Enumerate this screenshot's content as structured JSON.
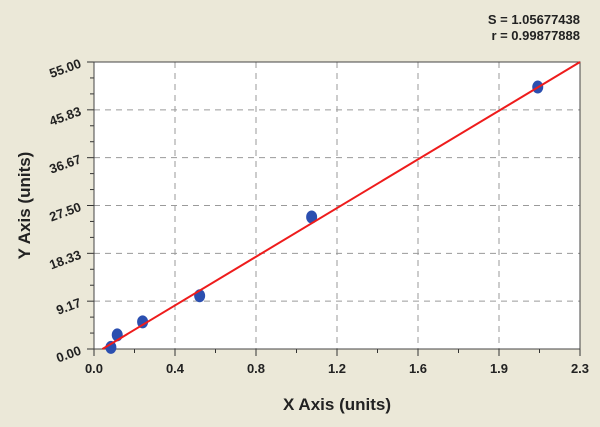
{
  "chart_data": {
    "type": "scatter",
    "title": "",
    "xlabel": "X Axis (units)",
    "ylabel": "Y Axis (units)",
    "xlim": [
      0,
      2.3
    ],
    "ylim": [
      0,
      55
    ],
    "xticks": [
      "0.0",
      "0.4",
      "0.8",
      "1.2",
      "1.6",
      "1.9",
      "2.3"
    ],
    "yticks": [
      "0.00",
      "9.17",
      "18.33",
      "27.50",
      "36.67",
      "45.83",
      "55.00"
    ],
    "grid": true,
    "annotations": {
      "s": "S = 1.05677438",
      "r": "r = 0.99877888"
    },
    "points": [
      {
        "x": 0.08,
        "y": 0.3
      },
      {
        "x": 0.11,
        "y": 2.7
      },
      {
        "x": 0.23,
        "y": 5.2
      },
      {
        "x": 0.5,
        "y": 10.2
      },
      {
        "x": 1.03,
        "y": 25.3
      },
      {
        "x": 2.1,
        "y": 50.2
      }
    ],
    "fit_line": {
      "x": [
        0.04,
        2.3
      ],
      "y": [
        0,
        55
      ]
    },
    "colors": {
      "points": "#2b4fb0",
      "fit_line": "#ee1c1c",
      "background": "#ebe8d8",
      "plot_area": "#ffffff",
      "grid": "#9a9a9a"
    }
  }
}
